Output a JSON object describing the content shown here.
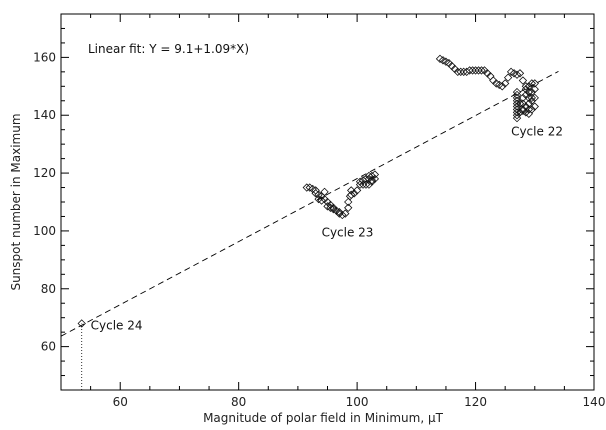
{
  "chart_data": {
    "type": "scatter",
    "xlabel": "Magnitude of polar field in Minimum, μT",
    "ylabel": "Sunspot number in Maximum",
    "xlim": [
      50,
      140
    ],
    "ylim": [
      45,
      175
    ],
    "x_ticks": [
      60,
      80,
      100,
      120,
      140
    ],
    "y_ticks": [
      60,
      80,
      100,
      120,
      140,
      160
    ],
    "fit_label": "Linear fit:  Y = 9.1+1.09*X)",
    "fit": {
      "intercept": 9.1,
      "slope": 1.09,
      "x_range": [
        50,
        134
      ]
    },
    "annotations": [
      {
        "text": "Cycle 22",
        "x": 126,
        "y": 133
      },
      {
        "text": "Cycle 23",
        "x": 94,
        "y": 98
      },
      {
        "text": "Cycle 24",
        "x": 55,
        "y": 66
      }
    ],
    "cycle24": {
      "x": 53.5,
      "y_low": 45,
      "y_high": 68
    },
    "series": [
      {
        "cycle": "22",
        "points": [
          [
            114,
            159.5
          ],
          [
            114.5,
            159
          ],
          [
            115,
            158.5
          ],
          [
            115.5,
            158
          ],
          [
            116,
            157
          ],
          [
            116.5,
            156
          ],
          [
            117,
            155
          ],
          [
            117.5,
            155
          ],
          [
            118,
            155
          ],
          [
            118.5,
            155
          ],
          [
            119,
            155.5
          ],
          [
            119.5,
            155.5
          ],
          [
            120,
            155.5
          ],
          [
            120.5,
            155.5
          ],
          [
            121,
            155.5
          ],
          [
            121.5,
            155.5
          ],
          [
            122,
            154.5
          ],
          [
            122.5,
            153.5
          ],
          [
            123,
            152
          ],
          [
            123.5,
            151
          ],
          [
            124,
            150.5
          ],
          [
            124.5,
            150
          ],
          [
            125,
            151
          ],
          [
            125.5,
            153
          ],
          [
            126,
            155
          ],
          [
            126.5,
            154.5
          ],
          [
            127,
            154
          ],
          [
            127.5,
            154.5
          ],
          [
            128,
            152
          ],
          [
            128.5,
            150
          ],
          [
            129,
            148
          ],
          [
            129.5,
            145
          ],
          [
            130,
            143
          ],
          [
            130,
            146
          ],
          [
            130,
            149
          ],
          [
            130,
            151
          ],
          [
            127,
            148
          ],
          [
            127,
            147
          ],
          [
            127,
            146
          ],
          [
            127,
            145
          ],
          [
            127,
            144
          ],
          [
            127,
            143
          ],
          [
            127,
            142
          ],
          [
            127,
            141
          ],
          [
            127,
            140
          ],
          [
            127,
            139
          ],
          [
            127.5,
            144
          ],
          [
            127.5,
            141
          ],
          [
            128,
            142
          ],
          [
            128,
            141.5
          ],
          [
            128.5,
            141
          ],
          [
            128.5,
            143
          ],
          [
            129,
            142
          ],
          [
            129,
            140.5
          ],
          [
            129,
            144
          ],
          [
            129,
            146
          ],
          [
            129,
            148
          ],
          [
            129,
            150
          ],
          [
            129.5,
            148
          ],
          [
            129.5,
            151
          ],
          [
            129.5,
            146
          ],
          [
            129.5,
            142
          ],
          [
            128,
            146
          ],
          [
            128,
            144
          ],
          [
            128.5,
            147
          ],
          [
            128.5,
            149
          ]
        ]
      },
      {
        "cycle": "23",
        "points": [
          [
            91.5,
            115
          ],
          [
            92,
            115
          ],
          [
            92.5,
            114.5
          ],
          [
            93,
            113
          ],
          [
            93.5,
            112.5
          ],
          [
            94,
            112
          ],
          [
            94.5,
            113.5
          ],
          [
            94.5,
            111
          ],
          [
            95,
            110
          ],
          [
            95.5,
            109
          ],
          [
            95.5,
            108
          ],
          [
            96,
            107.5
          ],
          [
            96.5,
            107
          ],
          [
            97,
            106
          ],
          [
            97.5,
            105.5
          ],
          [
            98,
            106
          ],
          [
            98.5,
            108
          ],
          [
            98.5,
            110
          ],
          [
            98.8,
            112
          ],
          [
            99,
            114
          ],
          [
            99.5,
            113
          ],
          [
            100,
            114
          ],
          [
            100.5,
            116
          ],
          [
            101,
            117.5
          ],
          [
            101.5,
            116
          ],
          [
            102,
            116
          ],
          [
            102,
            118
          ],
          [
            102.5,
            117
          ],
          [
            102.5,
            119
          ],
          [
            103,
            119.5
          ],
          [
            103,
            118
          ],
          [
            93,
            114
          ],
          [
            93.5,
            111
          ],
          [
            94,
            110.5
          ],
          [
            95,
            108.5
          ],
          [
            96,
            108
          ],
          [
            97,
            106.5
          ],
          [
            99,
            112.5
          ],
          [
            100.5,
            117
          ],
          [
            101,
            116
          ],
          [
            101.5,
            118
          ],
          [
            102,
            119
          ],
          [
            102.5,
            117.5
          ]
        ]
      },
      {
        "cycle": "24",
        "points": [
          [
            53.5,
            68
          ]
        ]
      }
    ]
  }
}
